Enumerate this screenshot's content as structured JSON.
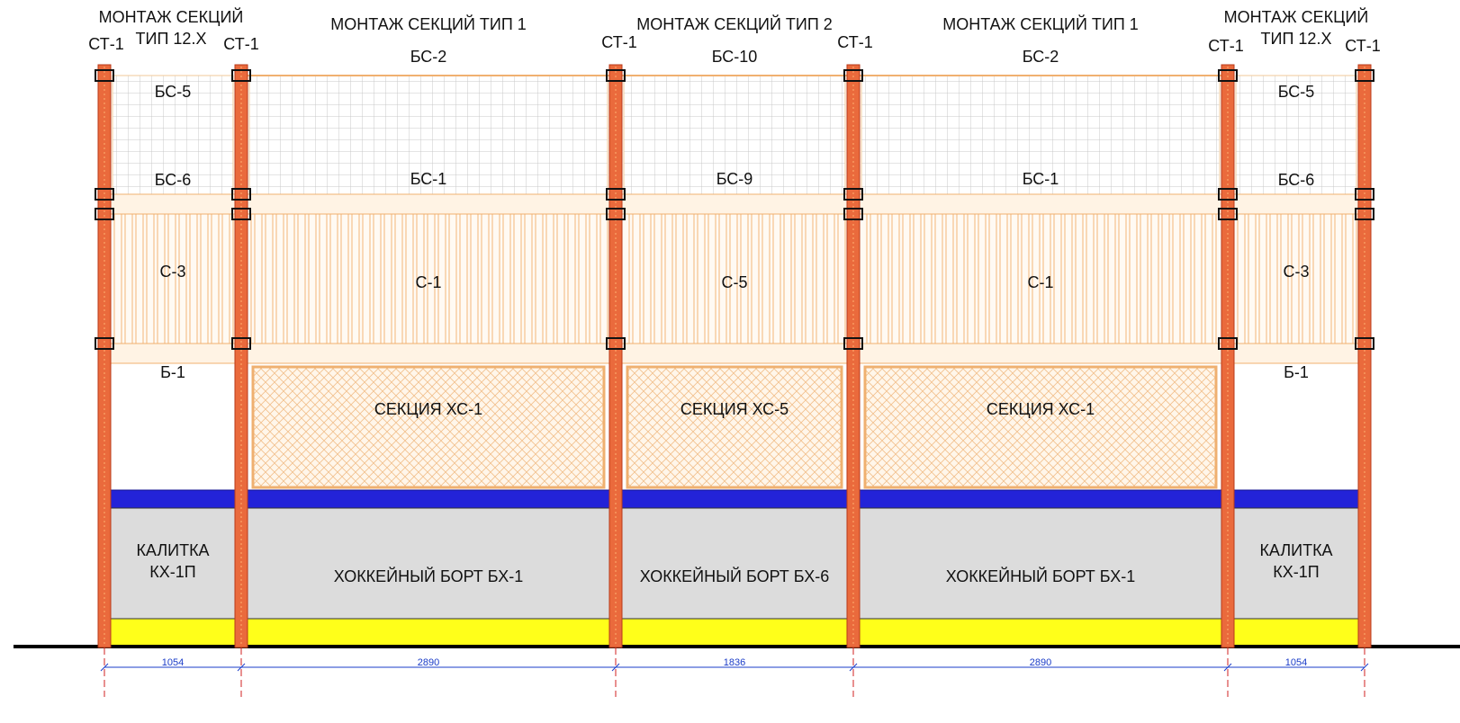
{
  "posts": [
    "СТ-1",
    "СТ-1",
    "СТ-1",
    "СТ-1",
    "СТ-1",
    "СТ-1"
  ],
  "sections": [
    {
      "heading": [
        "МОНТАЖ СЕКЦИЙ",
        "ТИП 12.Х"
      ],
      "labels": [
        "БС-5",
        "БС-6",
        "С-3",
        "Б-1"
      ],
      "board": [
        "КАЛИТКА",
        "КХ-1П"
      ]
    },
    {
      "heading": [
        "МОНТАЖ СЕКЦИЙ ТИП 1"
      ],
      "labels": [
        "БС-2",
        "БС-1",
        "С-1",
        "СЕКЦИЯ ХС-1"
      ],
      "board": [
        "ХОККЕЙНЫЙ БОРТ БХ-1"
      ]
    },
    {
      "heading": [
        "МОНТАЖ СЕКЦИЙ ТИП 2"
      ],
      "labels": [
        "БС-10",
        "БС-9",
        "С-5",
        "СЕКЦИЯ ХС-5"
      ],
      "board": [
        "ХОККЕЙНЫЙ БОРТ БХ-6"
      ]
    },
    {
      "heading": [
        "МОНТАЖ СЕКЦИЙ ТИП 1"
      ],
      "labels": [
        "БС-2",
        "БС-1",
        "С-1",
        "СЕКЦИЯ ХС-1"
      ],
      "board": [
        "ХОККЕЙНЫЙ БОРТ БХ-1"
      ]
    },
    {
      "heading": [
        "МОНТАЖ СЕКЦИЙ",
        "ТИП 12.Х"
      ],
      "labels": [
        "БС-5",
        "БС-6",
        "С-3",
        "Б-1"
      ],
      "board": [
        "КАЛИТКА",
        "КХ-1П"
      ]
    }
  ],
  "dimensions": [
    "1054",
    "2890",
    "1836",
    "2890",
    "1054"
  ]
}
